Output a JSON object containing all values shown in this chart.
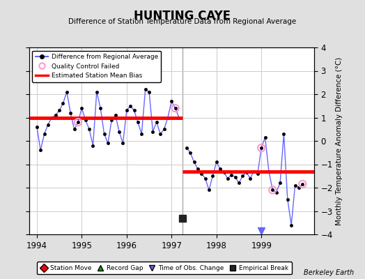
{
  "title": "HUNTING CAYE",
  "subtitle": "Difference of Station Temperature Data from Regional Average",
  "ylabel": "Monthly Temperature Anomaly Difference (°C)",
  "credit": "Berkeley Earth",
  "xlim": [
    1993.83,
    2000.17
  ],
  "ylim": [
    -4,
    4
  ],
  "yticks": [
    -4,
    -3,
    -2,
    -1,
    0,
    1,
    2,
    3,
    4
  ],
  "xticks": [
    1994,
    1995,
    1996,
    1997,
    1998,
    1999
  ],
  "background_color": "#e0e0e0",
  "plot_bg_color": "#ffffff",
  "grid_color": "#cccccc",
  "bias1_y": 1.0,
  "bias1_xstart": 1993.83,
  "bias1_xend": 1997.25,
  "bias2_y": -1.3,
  "bias2_xstart": 1997.25,
  "bias2_xend": 2000.17,
  "break_x": 1997.25,
  "break_y": -3.3,
  "time_obs_change_x": 1999.0,
  "time_obs_change_y": -3.85,
  "data_x": [
    1994.0,
    1994.083,
    1994.167,
    1994.25,
    1994.333,
    1994.417,
    1994.5,
    1994.583,
    1994.667,
    1994.75,
    1994.833,
    1994.917,
    1995.0,
    1995.083,
    1995.167,
    1995.25,
    1995.333,
    1995.417,
    1995.5,
    1995.583,
    1995.667,
    1995.75,
    1995.833,
    1995.917,
    1996.0,
    1996.083,
    1996.167,
    1996.25,
    1996.333,
    1996.417,
    1996.5,
    1996.583,
    1996.667,
    1996.75,
    1996.833,
    1996.917,
    1997.0,
    1997.083,
    1997.167,
    1997.333,
    1997.417,
    1997.5,
    1997.583,
    1997.667,
    1997.75,
    1997.833,
    1997.917,
    1998.0,
    1998.083,
    1998.167,
    1998.25,
    1998.333,
    1998.417,
    1998.5,
    1998.583,
    1998.667,
    1998.75,
    1998.833,
    1998.917,
    1999.0,
    1999.083,
    1999.167,
    1999.25,
    1999.333,
    1999.417,
    1999.5,
    1999.583,
    1999.667,
    1999.75,
    1999.833,
    1999.917
  ],
  "data_y": [
    0.6,
    -0.4,
    0.3,
    0.7,
    1.0,
    1.1,
    1.3,
    1.6,
    2.1,
    1.2,
    0.5,
    0.8,
    1.4,
    0.9,
    0.5,
    -0.2,
    2.1,
    1.4,
    0.3,
    -0.1,
    0.9,
    1.1,
    0.4,
    -0.1,
    1.3,
    1.5,
    1.3,
    0.8,
    0.3,
    2.2,
    2.1,
    0.4,
    0.8,
    0.3,
    0.5,
    1.0,
    1.7,
    1.4,
    1.0,
    -0.3,
    -0.5,
    -0.9,
    -1.2,
    -1.4,
    -1.6,
    -2.1,
    -1.5,
    -0.9,
    -1.2,
    -1.35,
    -1.6,
    -1.45,
    -1.55,
    -1.8,
    -1.5,
    -1.35,
    -1.6,
    -1.3,
    -1.4,
    -0.3,
    0.15,
    -1.3,
    -2.1,
    -2.2,
    -1.8,
    0.3,
    -2.5,
    -3.6,
    -1.9,
    -2.0,
    -1.85
  ],
  "qc_failed_x": [
    1994.917,
    1997.083,
    1999.0,
    1999.25,
    1999.917
  ],
  "qc_failed_y": [
    0.8,
    1.4,
    -0.3,
    -2.1,
    -1.85
  ],
  "line_color": "#6666ff",
  "marker_color": "#000000",
  "bias_color": "#ff0000",
  "qc_color": "#ff99cc",
  "break_marker_color": "#222222",
  "vertical_line_x": 1997.25,
  "vertical_line_color": "#aaaaaa"
}
